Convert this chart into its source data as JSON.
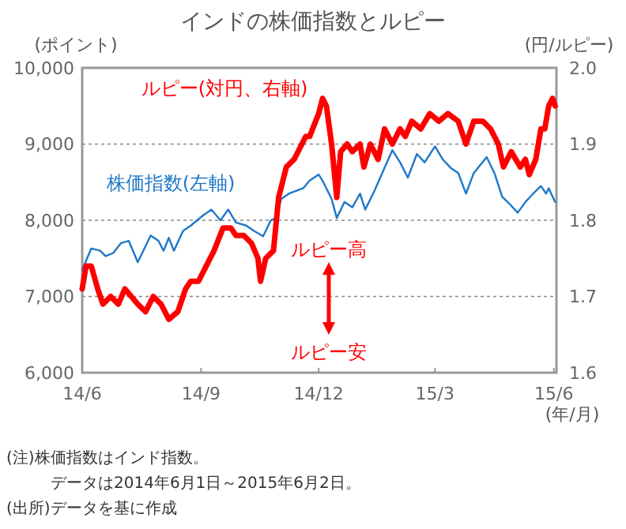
{
  "chart_data": {
    "type": "line",
    "title": "インドの株価指数とルピー",
    "ylabel": "(ポイント)",
    "y2label": "(円/ルピー)",
    "xlabel": "(年/月)",
    "xlim": [
      "2014-06-01",
      "2015-06-03"
    ],
    "xticks": [
      {
        "value": "2014-06-01",
        "label": "14/6"
      },
      {
        "value": "2014-09-01",
        "label": "14/9"
      },
      {
        "value": "2014-12-01",
        "label": "14/12"
      },
      {
        "value": "2015-03-01",
        "label": "15/3"
      },
      {
        "value": "2015-06-01",
        "label": "15/6"
      }
    ],
    "ylim": [
      6000,
      10000
    ],
    "yticks": [
      {
        "value": 6000,
        "label": "6,000"
      },
      {
        "value": 7000,
        "label": "7,000"
      },
      {
        "value": 8000,
        "label": "8,000"
      },
      {
        "value": 9000,
        "label": "9,000"
      },
      {
        "value": 10000,
        "label": "10,000"
      }
    ],
    "y2lim": [
      1.6,
      2.0
    ],
    "y2ticks": [
      1.6,
      1.7,
      1.8,
      1.9,
      {
        "value": 2.0,
        "label": "2.0"
      }
    ],
    "grid": "y",
    "legend": false,
    "series": [
      {
        "name": "株価指数(左軸)",
        "color": "#1f78c8",
        "x": [
          "2014-06-01",
          "2014-06-08",
          "2014-06-15",
          "2014-06-19",
          "2014-06-25",
          "2014-07-01",
          "2014-07-07",
          "2014-07-14",
          "2014-07-24",
          "2014-07-30",
          "2014-08-03",
          "2014-08-07",
          "2014-08-11",
          "2014-08-18",
          "2014-08-24",
          "2014-09-03",
          "2014-09-09",
          "2014-09-16",
          "2014-09-22",
          "2014-09-28",
          "2014-10-06",
          "2014-10-12",
          "2014-10-19",
          "2014-10-25",
          "2014-10-29",
          "2014-11-02",
          "2014-11-08",
          "2014-11-19",
          "2014-11-24",
          "2014-12-01",
          "2014-12-04",
          "2014-12-11",
          "2014-12-15",
          "2014-12-21",
          "2014-12-27",
          "2015-01-02",
          "2015-01-06",
          "2015-01-13",
          "2015-01-21",
          "2015-01-27",
          "2015-02-02",
          "2015-02-08",
          "2015-02-15",
          "2015-02-21",
          "2015-03-01",
          "2015-03-07",
          "2015-03-13",
          "2015-03-19",
          "2015-03-25",
          "2015-03-31",
          "2015-04-10",
          "2015-04-16",
          "2015-04-22",
          "2015-04-28",
          "2015-05-04",
          "2015-05-10",
          "2015-05-16",
          "2015-05-22",
          "2015-05-26",
          "2015-05-28",
          "2015-06-02"
        ],
        "values": [
          7350,
          7630,
          7600,
          7530,
          7570,
          7700,
          7730,
          7450,
          7800,
          7730,
          7600,
          7770,
          7600,
          7860,
          7930,
          8070,
          8140,
          8000,
          8140,
          7970,
          7930,
          7860,
          7790,
          8000,
          8030,
          8280,
          8350,
          8420,
          8520,
          8600,
          8520,
          8280,
          8030,
          8240,
          8170,
          8350,
          8140,
          8380,
          8690,
          8920,
          8760,
          8560,
          8870,
          8760,
          8970,
          8800,
          8690,
          8620,
          8350,
          8620,
          8830,
          8620,
          8310,
          8210,
          8100,
          8240,
          8350,
          8450,
          8350,
          8420,
          8240
        ]
      },
      {
        "name": "ルピー(対円、右軸)",
        "color": "#ff0000",
        "axis": "y2",
        "x": [
          "2014-06-01",
          "2014-06-04",
          "2014-06-08",
          "2014-06-13",
          "2014-06-17",
          "2014-06-23",
          "2014-06-29",
          "2014-07-04",
          "2014-07-09",
          "2014-07-14",
          "2014-07-20",
          "2014-07-26",
          "2014-08-01",
          "2014-08-07",
          "2014-08-14",
          "2014-08-20",
          "2014-08-24",
          "2014-08-30",
          "2014-09-05",
          "2014-09-11",
          "2014-09-18",
          "2014-09-24",
          "2014-09-28",
          "2014-10-04",
          "2014-10-10",
          "2014-10-15",
          "2014-10-17",
          "2014-10-21",
          "2014-10-27",
          "2014-10-31",
          "2014-11-06",
          "2014-11-12",
          "2014-11-21",
          "2014-11-24",
          "2014-12-01",
          "2014-12-04",
          "2014-12-07",
          "2014-12-11",
          "2014-12-15",
          "2014-12-18",
          "2014-12-23",
          "2014-12-27",
          "2015-01-02",
          "2015-01-05",
          "2015-01-10",
          "2015-01-16",
          "2015-01-21",
          "2015-01-27",
          "2015-02-02",
          "2015-02-06",
          "2015-02-11",
          "2015-02-18",
          "2015-02-25",
          "2015-03-04",
          "2015-03-11",
          "2015-03-19",
          "2015-03-25",
          "2015-03-31",
          "2015-04-07",
          "2015-04-13",
          "2015-04-19",
          "2015-04-23",
          "2015-04-29",
          "2015-05-06",
          "2015-05-10",
          "2015-05-13",
          "2015-05-18",
          "2015-05-22",
          "2015-05-25",
          "2015-05-28",
          "2015-05-31",
          "2015-06-02"
        ],
        "values": [
          1.71,
          1.74,
          1.74,
          1.71,
          1.69,
          1.7,
          1.69,
          1.71,
          1.7,
          1.69,
          1.68,
          1.7,
          1.69,
          1.67,
          1.68,
          1.71,
          1.72,
          1.72,
          1.74,
          1.76,
          1.79,
          1.79,
          1.78,
          1.78,
          1.77,
          1.75,
          1.72,
          1.75,
          1.76,
          1.83,
          1.87,
          1.88,
          1.91,
          1.91,
          1.94,
          1.96,
          1.95,
          1.9,
          1.83,
          1.89,
          1.9,
          1.89,
          1.9,
          1.87,
          1.9,
          1.88,
          1.92,
          1.9,
          1.92,
          1.91,
          1.93,
          1.92,
          1.94,
          1.93,
          1.94,
          1.93,
          1.9,
          1.93,
          1.93,
          1.92,
          1.9,
          1.87,
          1.89,
          1.87,
          1.88,
          1.86,
          1.88,
          1.92,
          1.92,
          1.95,
          1.96,
          1.95
        ]
      }
    ],
    "annotations": [
      "ルピー高",
      "ルピー安",
      "(注)株価指数はインド指数。",
      "データは2014年6月1日～2015年6月2日。",
      "(出所)データを基に作成"
    ]
  }
}
